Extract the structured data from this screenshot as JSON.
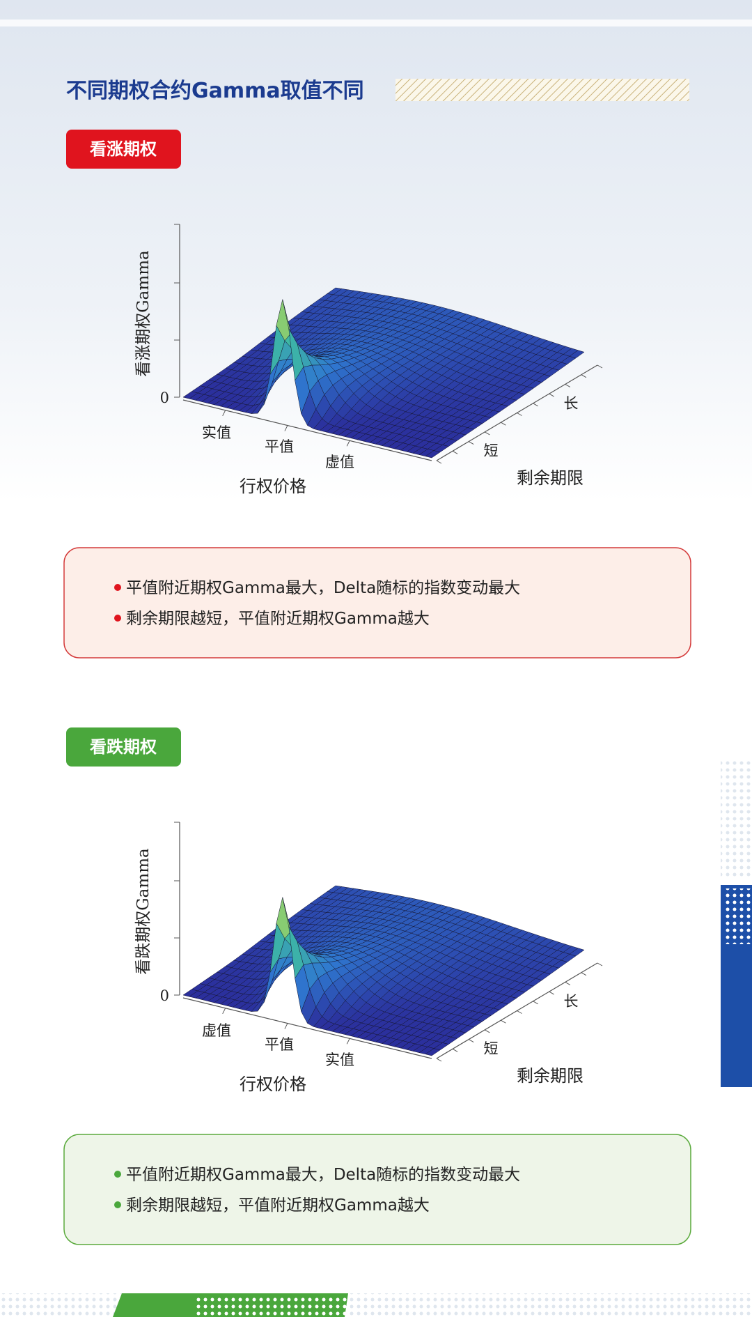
{
  "header": {
    "title": "不同期权合约Gamma取值不同"
  },
  "sections": [
    {
      "badge": "看涨期权",
      "chart": {
        "z_label": "看涨期权Gamma",
        "zero": "0",
        "strike_labels": [
          "实值",
          "平值",
          "虚值"
        ],
        "strike_title": "行权价格",
        "maturity_labels": [
          "短",
          "长"
        ],
        "maturity_title": "剩余期限"
      },
      "bullets": [
        "平值附近期权Gamma最大，Delta随标的指数变动最大",
        "剩余期限越短，平值附近期权Gamma越大"
      ]
    },
    {
      "badge": "看跌期权",
      "chart": {
        "z_label": "看跌期权Gamma",
        "zero": "0",
        "strike_labels": [
          "虚值",
          "平值",
          "实值"
        ],
        "strike_title": "行权价格",
        "maturity_labels": [
          "短",
          "长"
        ],
        "maturity_title": "剩余期限"
      },
      "bullets": [
        "平值附近期权Gamma最大，Delta随标的指数变动最大",
        "剩余期限越短，平值附近期权Gamma越大"
      ]
    }
  ]
}
